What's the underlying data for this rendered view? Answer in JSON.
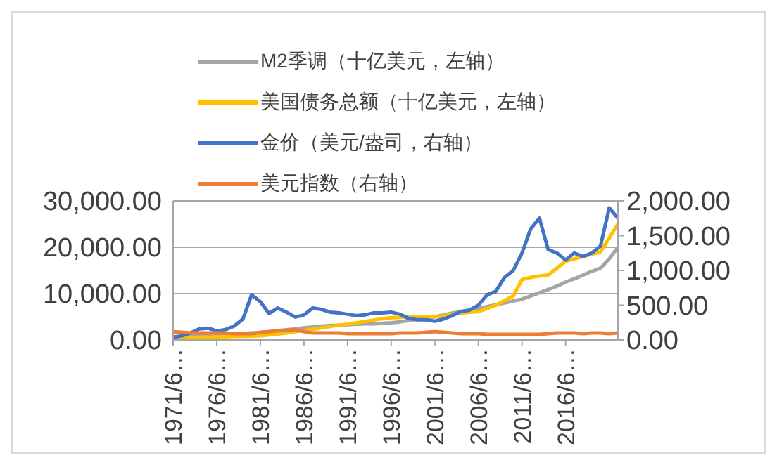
{
  "chart_data": {
    "type": "line",
    "legend": "top",
    "grid": "y",
    "marker": "none",
    "categories": [
      "1971/6…",
      null,
      null,
      null,
      null,
      "1976/6…",
      null,
      null,
      null,
      null,
      "1981/6…",
      null,
      null,
      null,
      null,
      "1986/6…",
      null,
      null,
      null,
      null,
      "1991/6…",
      null,
      null,
      null,
      null,
      "1996/6…",
      null,
      null,
      null,
      null,
      "2001/6…",
      null,
      null,
      null,
      null,
      "2006/6…",
      null,
      null,
      null,
      null,
      "2011/6…",
      null,
      null,
      null,
      null,
      "2016/6…",
      null,
      null,
      null,
      null,
      null,
      null
    ],
    "ylim": [
      0,
      30000
    ],
    "yticks": [
      {
        "value": 0,
        "label": "0.00"
      },
      {
        "value": 10000,
        "label": "10,000.00"
      },
      {
        "value": 20000,
        "label": "20,000.00"
      },
      {
        "value": 30000,
        "label": "30,000.00"
      }
    ],
    "y2lim": [
      0,
      2000
    ],
    "y2ticks": [
      {
        "value": 0,
        "label": "0.00"
      },
      {
        "value": 500,
        "label": "500.00"
      },
      {
        "value": 1000,
        "label": "1,000.00"
      },
      {
        "value": 1500,
        "label": "1,500.00"
      },
      {
        "value": 2000,
        "label": "2,000.00"
      }
    ],
    "series": [
      {
        "name": "M2季调（十亿美元，左轴）",
        "color": "#a5a5a5",
        "values": [
          600,
          700,
          800,
          900,
          1000,
          1100,
          1200,
          1300,
          1400,
          1500,
          1600,
          1800,
          2000,
          2200,
          2400,
          2600,
          2800,
          3000,
          3100,
          3200,
          3300,
          3400,
          3500,
          3500,
          3600,
          3700,
          3900,
          4200,
          4500,
          4800,
          5000,
          5400,
          5800,
          6100,
          6400,
          6800,
          7200,
          7600,
          8000,
          8400,
          8800,
          9500,
          10200,
          10900,
          11600,
          12500,
          13200,
          14000,
          14800,
          15500,
          17500,
          20000
        ]
      },
      {
        "name": "美国债务总额（十亿美元，左轴）",
        "color": "#ffc000",
        "values": [
          400,
          450,
          500,
          550,
          600,
          650,
          700,
          750,
          800,
          850,
          900,
          1100,
          1300,
          1500,
          1800,
          2000,
          2300,
          2600,
          2900,
          3200,
          3400,
          3700,
          4000,
          4300,
          4600,
          4800,
          4900,
          5000,
          5000,
          5000,
          5000,
          5200,
          5500,
          5800,
          6000,
          6100,
          6800,
          7500,
          8500,
          9500,
          13000,
          13500,
          13800,
          14000,
          15500,
          17000,
          17500,
          18000,
          18500,
          19000,
          22000,
          25000
        ]
      },
      {
        "name": "金价（美元/盎司，右轴）",
        "color": "#4472c4",
        "axis": "y2",
        "values": [
          40,
          60,
          100,
          160,
          170,
          130,
          150,
          200,
          300,
          650,
          550,
          380,
          460,
          400,
          330,
          360,
          460,
          440,
          400,
          390,
          370,
          350,
          360,
          390,
          390,
          400,
          370,
          310,
          290,
          290,
          270,
          300,
          350,
          410,
          430,
          500,
          650,
          700,
          900,
          1000,
          1250,
          1600,
          1750,
          1300,
          1250,
          1150,
          1250,
          1200,
          1250,
          1350,
          1900,
          1750
        ]
      },
      {
        "name": "美元指数（右轴）",
        "color": "#ed7d31",
        "axis": "y2",
        "values": [
          120,
          110,
          100,
          100,
          100,
          100,
          100,
          90,
          90,
          90,
          110,
          120,
          130,
          140,
          150,
          120,
          100,
          100,
          100,
          100,
          90,
          90,
          90,
          90,
          90,
          90,
          100,
          100,
          100,
          110,
          120,
          110,
          100,
          90,
          90,
          90,
          80,
          80,
          80,
          80,
          80,
          80,
          80,
          90,
          100,
          100,
          100,
          90,
          100,
          100,
          90,
          100
        ]
      }
    ]
  }
}
